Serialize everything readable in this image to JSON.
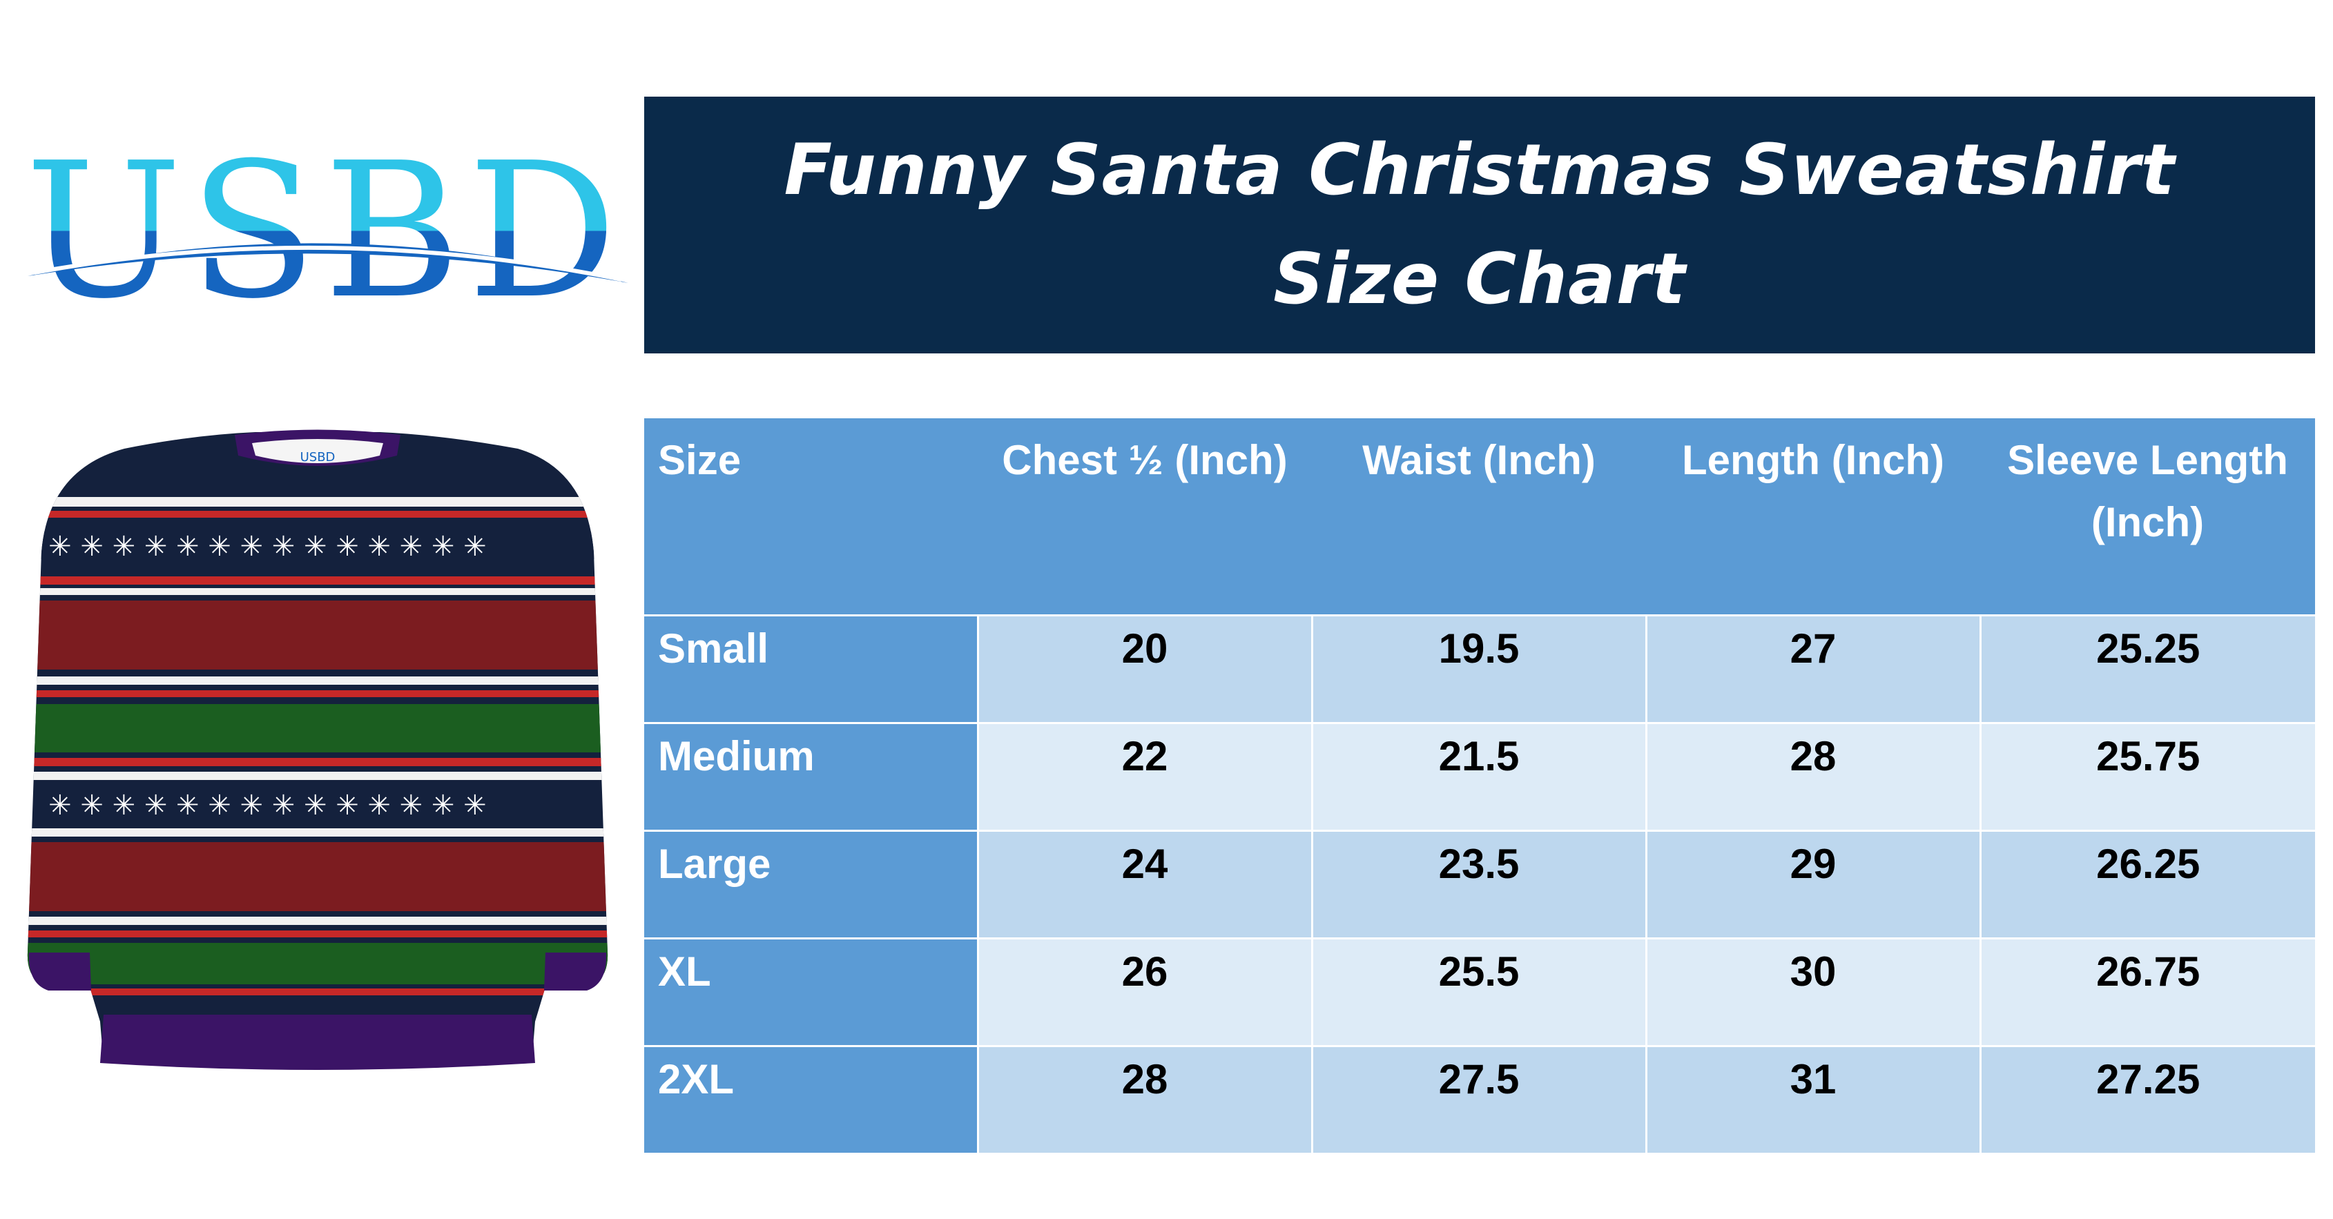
{
  "logo": {
    "text": "USBD",
    "color_top": "#29b6e0",
    "color_bottom": "#1565c0"
  },
  "title": {
    "line1": "Funny Santa Christmas Sweatshirt",
    "line2": "Size Chart"
  },
  "sweater": {
    "collar_label": "USBD",
    "image_icon": "sweater-image-icon"
  },
  "table": {
    "headers": [
      "Size",
      "Chest ½ (Inch)",
      "Waist (Inch)",
      "Length (Inch)",
      "Sleeve Length (Inch)"
    ],
    "rows": [
      [
        "Small",
        "20",
        "19.5",
        "27",
        "25.25"
      ],
      [
        "Medium",
        "22",
        "21.5",
        "28",
        "25.75"
      ],
      [
        "Large",
        "24",
        "23.5",
        "29",
        "26.25"
      ],
      [
        "XL",
        "26",
        "25.5",
        "30",
        "26.75"
      ],
      [
        "2XL",
        "28",
        "27.5",
        "31",
        "27.25"
      ]
    ]
  },
  "colors": {
    "banner": "#0a2a4a",
    "header": "#5b9bd5",
    "row_dark": "#bdd7ee",
    "row_light": "#ddebf7"
  }
}
